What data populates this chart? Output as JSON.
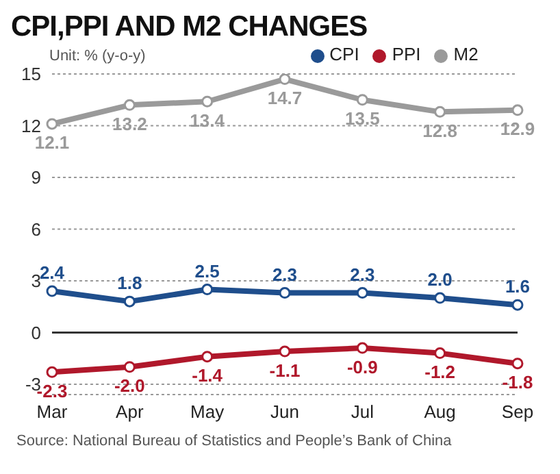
{
  "chart_data": {
    "type": "line",
    "title": "CPI,PPI AND M2 CHANGES",
    "ylabel": "Unit: % (y-o-y)",
    "categories": [
      "Mar",
      "Apr",
      "May",
      "Jun",
      "Jul",
      "Aug",
      "Sep"
    ],
    "series": [
      {
        "name": "CPI",
        "color": "#1f4e8c",
        "values": [
          2.4,
          1.8,
          2.5,
          2.3,
          2.3,
          2,
          1.6
        ],
        "value_labels": [
          "2.4",
          "1.8",
          "2.5",
          "2.3",
          "2.3",
          "2.0",
          "1.6"
        ]
      },
      {
        "name": "PPI",
        "color": "#b0182b",
        "values": [
          -2.3,
          -2,
          -1.4,
          -1.1,
          -0.9,
          -1.2,
          -1.8
        ],
        "value_labels": [
          "-2.3",
          "-2.0",
          "-1.4",
          "-1.1",
          "-0.9",
          "-1.2",
          "-1.8"
        ]
      },
      {
        "name": "M2",
        "color": "#9a9a9a",
        "values": [
          12.1,
          13.2,
          13.4,
          14.7,
          13.5,
          12.8,
          12.9
        ],
        "value_labels": [
          "12.1",
          "13.2",
          "13.4",
          "14.7",
          "13.5",
          "12.8",
          "12.9"
        ]
      }
    ],
    "ylim": [
      -3.6,
      15
    ],
    "yticks": [
      -3,
      0,
      3,
      6,
      9,
      12,
      15
    ],
    "grid": "y",
    "legend": "top",
    "marker": "circle",
    "ref_lines": [
      {
        "axis": "y",
        "value": 0,
        "color": "#333333"
      }
    ],
    "annotations": [
      "Source: National Bureau of Statistics and People’s Bank of China"
    ]
  }
}
